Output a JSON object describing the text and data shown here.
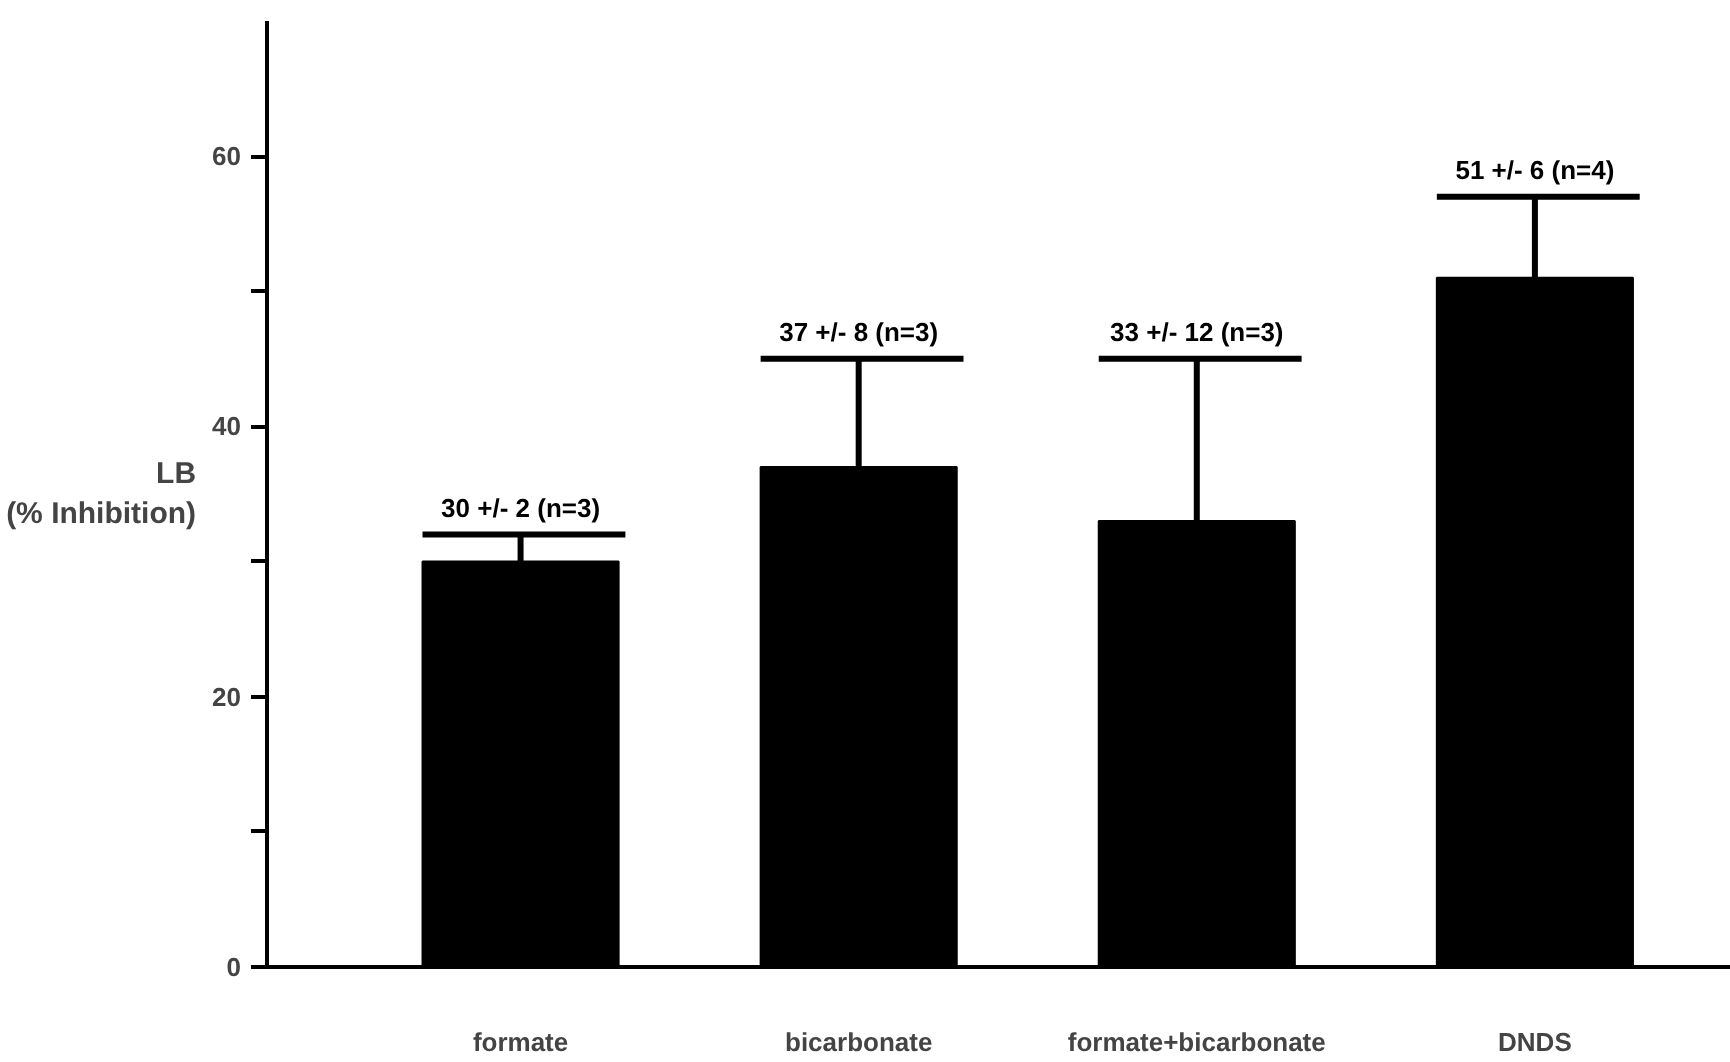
{
  "chart_data": {
    "type": "bar",
    "ylabel": "LB\n(% Inhibition)",
    "categories": [
      "formate",
      "bicarbonate",
      "formate+bicarbonate",
      "DNDS"
    ],
    "values": [
      30,
      37,
      33,
      51
    ],
    "color": "#000000",
    "errors": [
      [
        30,
        32
      ],
      [
        37,
        45
      ],
      [
        33,
        45
      ],
      [
        51,
        57
      ]
    ],
    "annotations": [
      {
        "text": "30 +/- 2 (n=3)",
        "x": "formate",
        "y": 32
      },
      {
        "text": "37 +/- 8 (n=3)",
        "x": "bicarbonate",
        "y": 45
      },
      {
        "text": "33 +/- 12 (n=3)",
        "x": "formate+bicarbonate",
        "y": 45
      },
      {
        "text": "51 +/- 6 (n=4)",
        "x": "DNDS",
        "y": 57
      }
    ],
    "ylim": [
      0,
      70
    ],
    "yticks": [
      0,
      {
        "value": 10,
        "label": null
      },
      20,
      {
        "value": 30,
        "label": null
      },
      40,
      {
        "value": 50,
        "label": null
      },
      60
    ],
    "grid": false
  }
}
